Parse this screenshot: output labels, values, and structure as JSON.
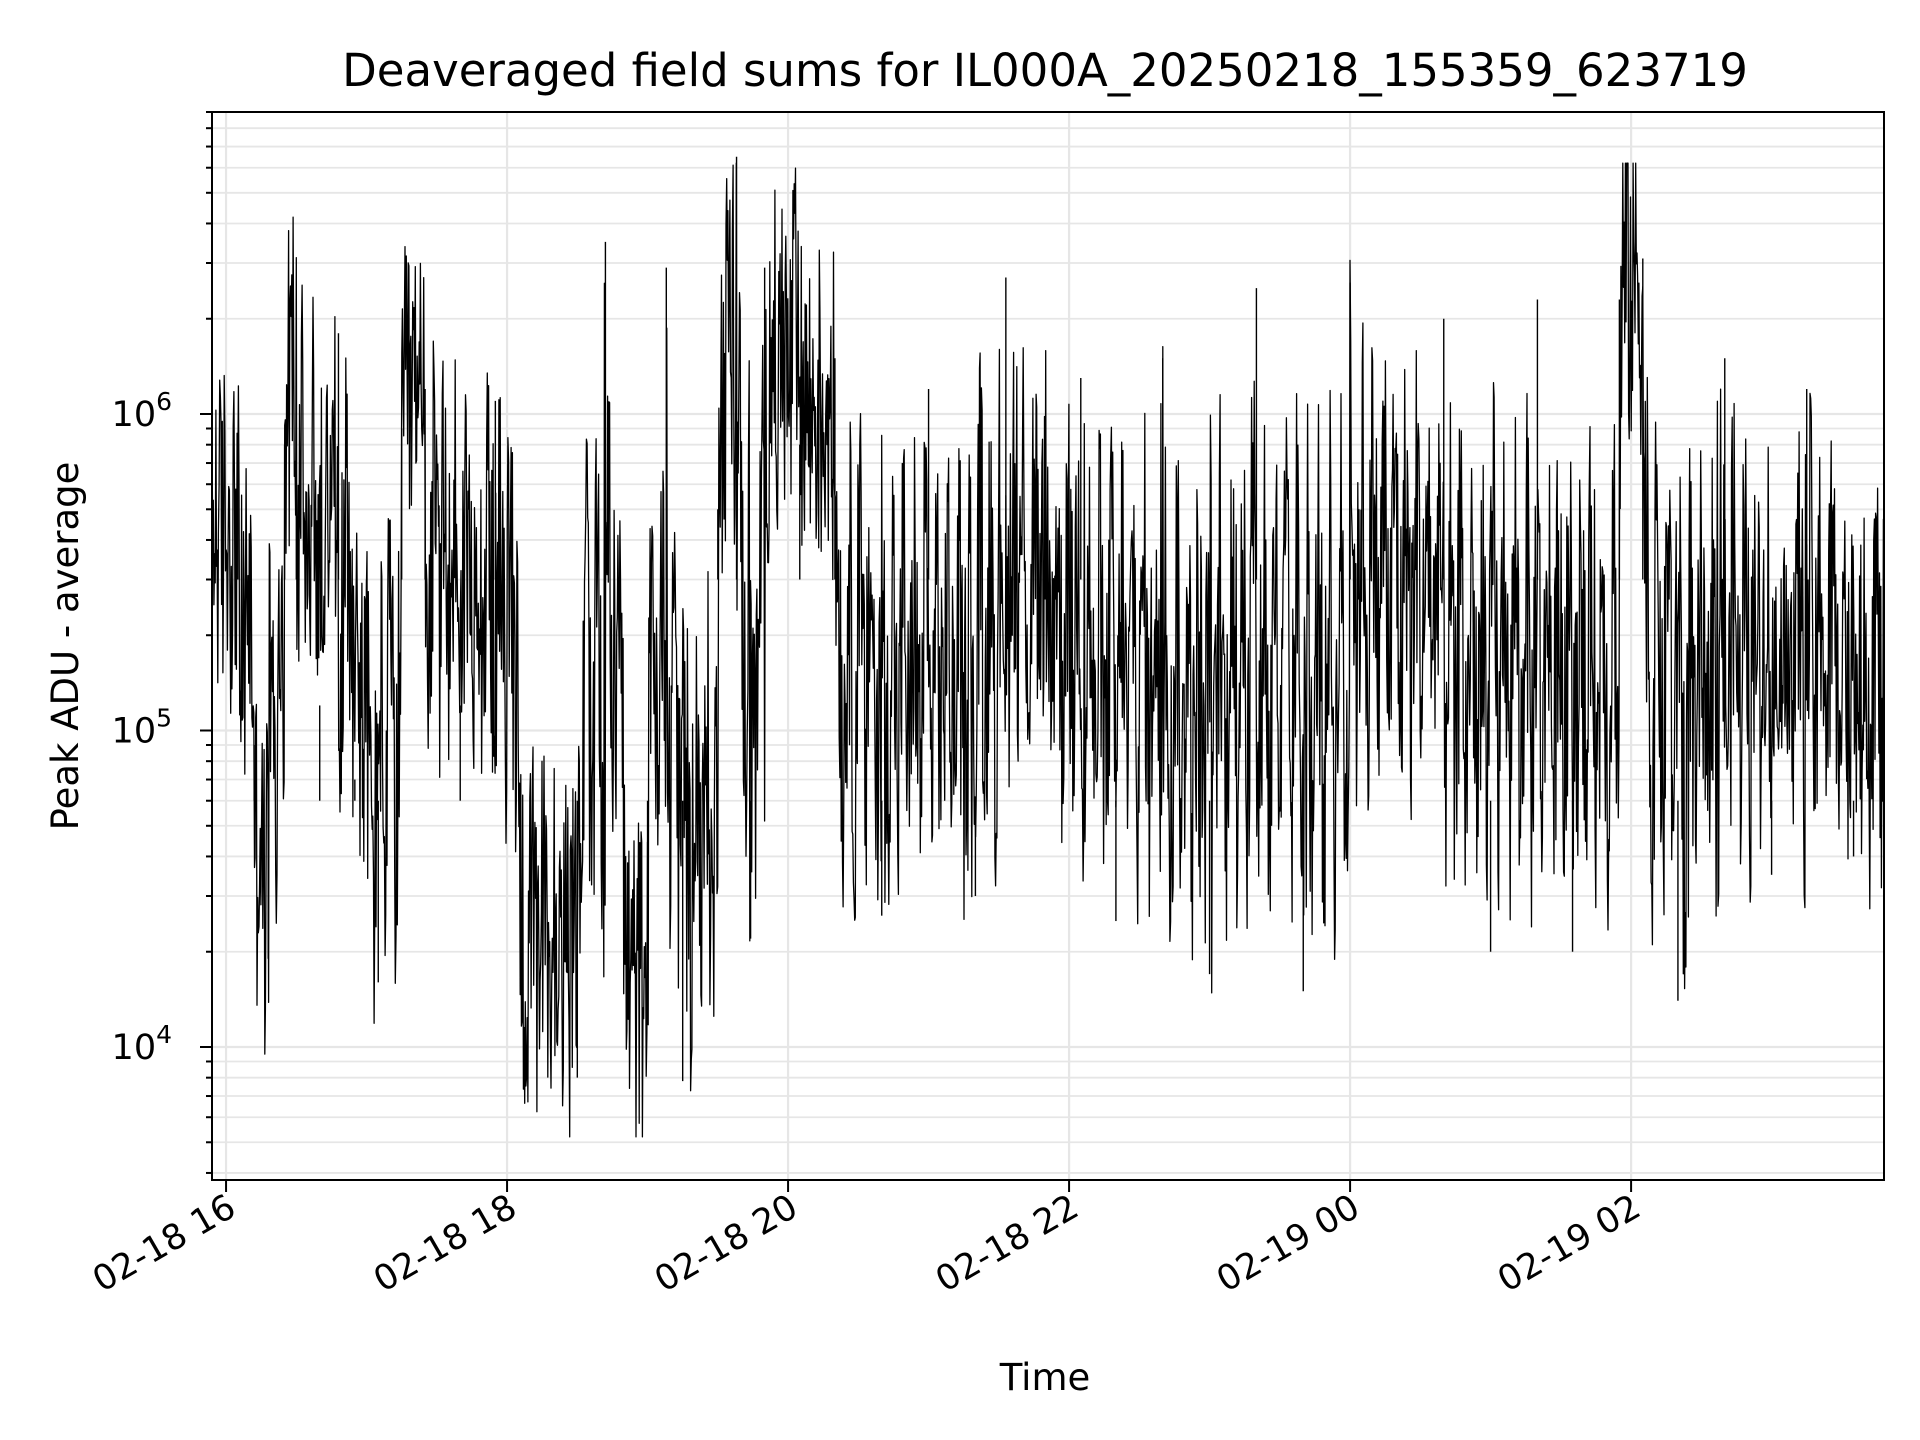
{
  "chart_data": {
    "type": "line",
    "title": "Deaveraged field sums for IL000A_20250218_155359_623719",
    "xlabel": "Time",
    "ylabel": "Peak ADU - average",
    "y_scale": "log",
    "ylim": [
      3800,
      9000000
    ],
    "xlim": [
      "2025-02-18 15:54",
      "2025-02-19 03:48"
    ],
    "x_ticks": [
      {
        "label": "02-18 16",
        "time": "2025-02-18 16:00"
      },
      {
        "label": "02-18 18",
        "time": "2025-02-18 18:00"
      },
      {
        "label": "02-18 20",
        "time": "2025-02-18 20:00"
      },
      {
        "label": "02-18 22",
        "time": "2025-02-18 22:00"
      },
      {
        "label": "02-19 00",
        "time": "2025-02-19 00:00"
      },
      {
        "label": "02-19 02",
        "time": "2025-02-19 02:00"
      }
    ],
    "y_ticks": [
      {
        "base": "10",
        "exp": "4",
        "value": 10000
      },
      {
        "base": "10",
        "exp": "5",
        "value": 100000
      },
      {
        "base": "10",
        "exp": "6",
        "value": 1000000
      }
    ],
    "grid": true,
    "line_color": "#000000",
    "series_points": [
      [
        "2025-02-18 15:54",
        330000
      ],
      [
        "2025-02-18 16:05",
        620000
      ],
      [
        "2025-02-18 16:12",
        90000
      ],
      [
        "2025-02-18 16:18",
        19000
      ],
      [
        "2025-02-18 16:25",
        800000
      ],
      [
        "2025-02-18 16:30",
        2300000
      ],
      [
        "2025-02-18 16:40",
        120000
      ],
      [
        "2025-02-18 16:48",
        1800000
      ],
      [
        "2025-02-18 16:55",
        70000
      ],
      [
        "2025-02-18 17:00",
        260000
      ],
      [
        "2025-02-18 17:05",
        16000
      ],
      [
        "2025-02-18 17:15",
        900000
      ],
      [
        "2025-02-18 17:25",
        1200000
      ],
      [
        "2025-02-18 17:40",
        120000
      ],
      [
        "2025-02-18 17:55",
        1100000
      ],
      [
        "2025-02-18 18:05",
        60000
      ],
      [
        "2025-02-18 18:30",
        8000
      ],
      [
        "2025-02-18 18:42",
        3500000
      ],
      [
        "2025-02-18 18:50",
        20000
      ],
      [
        "2025-02-18 19:00",
        13000
      ],
      [
        "2025-02-18 19:08",
        2900000
      ],
      [
        "2025-02-18 19:15",
        7800
      ],
      [
        "2025-02-18 19:30",
        500000
      ],
      [
        "2025-02-18 19:38",
        6500000
      ],
      [
        "2025-02-18 19:44",
        22000
      ],
      [
        "2025-02-18 19:50",
        2900000
      ],
      [
        "2025-02-18 20:05",
        800000
      ],
      [
        "2025-02-18 20:20",
        1500000
      ],
      [
        "2025-02-18 20:40",
        26000
      ],
      [
        "2025-02-18 21:00",
        1200000
      ],
      [
        "2025-02-18 21:20",
        30000
      ],
      [
        "2025-02-18 21:33",
        2700000
      ],
      [
        "2025-02-18 21:50",
        60000
      ],
      [
        "2025-02-18 22:05",
        1300000
      ],
      [
        "2025-02-18 22:20",
        25000
      ],
      [
        "2025-02-18 22:40",
        1500000
      ],
      [
        "2025-02-18 23:00",
        17000
      ],
      [
        "2025-02-18 23:20",
        2500000
      ],
      [
        "2025-02-18 23:40",
        15000
      ],
      [
        "2025-02-19 00:00",
        2600000
      ],
      [
        "2025-02-19 00:20",
        60000
      ],
      [
        "2025-02-19 00:40",
        2000000
      ],
      [
        "2025-02-19 01:00",
        20000
      ],
      [
        "2025-02-19 01:20",
        2300000
      ],
      [
        "2025-02-19 01:35",
        20000
      ],
      [
        "2025-02-19 01:55",
        2300000
      ],
      [
        "2025-02-19 02:05",
        3100000
      ],
      [
        "2025-02-19 02:20",
        14000
      ],
      [
        "2025-02-19 02:40",
        1500000
      ],
      [
        "2025-02-19 03:00",
        35000
      ],
      [
        "2025-02-19 03:15",
        1200000
      ],
      [
        "2025-02-19 03:35",
        40000
      ],
      [
        "2025-02-19 03:48",
        900000
      ]
    ]
  }
}
